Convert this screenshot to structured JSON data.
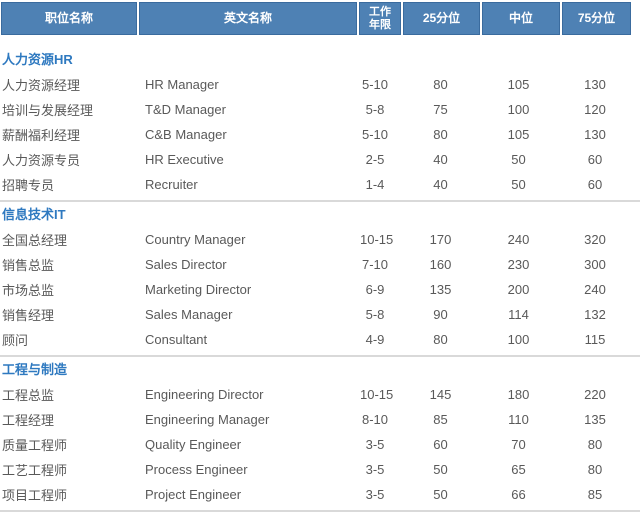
{
  "colors": {
    "header_bg": "#4E81B4",
    "header_border": "#3A6B9E",
    "header_text": "#FFFFFF",
    "section_title": "#2E79C0",
    "body_text": "#595959",
    "divider": "#D9D9D9"
  },
  "table": {
    "columns": [
      {
        "label": "职位名称"
      },
      {
        "label": "英文名称"
      },
      {
        "label": "工作年限"
      },
      {
        "label": "25分位"
      },
      {
        "label": "中位"
      },
      {
        "label": "75分位"
      }
    ],
    "sections": [
      {
        "title": "人力资源HR",
        "rows": [
          [
            "人力资源经理",
            "HR Manager",
            "5-10",
            "80",
            "105",
            "130"
          ],
          [
            "培训与发展经理",
            "T&D Manager",
            "5-8",
            "75",
            "100",
            "120"
          ],
          [
            "薪酬福利经理",
            "C&B Manager",
            "5-10",
            "80",
            "105",
            "130"
          ],
          [
            "人力资源专员",
            "HR Executive",
            "2-5",
            "40",
            "50",
            "60"
          ],
          [
            "招聘专员",
            "Recruiter",
            "1-4",
            "40",
            "50",
            "60"
          ]
        ]
      },
      {
        "title": "信息技术IT",
        "rows": [
          [
            "全国总经理",
            "Country Manager",
            "10-15",
            "170",
            "240",
            "320"
          ],
          [
            "销售总监",
            "Sales Director",
            "7-10",
            "160",
            "230",
            "300"
          ],
          [
            "市场总监",
            "Marketing Director",
            "6-9",
            "135",
            "200",
            "240"
          ],
          [
            "销售经理",
            "Sales Manager",
            "5-8",
            "90",
            "114",
            "132"
          ],
          [
            "顾问",
            "Consultant",
            "4-9",
            "80",
            "100",
            "115"
          ]
        ]
      },
      {
        "title": "工程与制造",
        "rows": [
          [
            "工程总监",
            "Engineering Director",
            "10-15",
            "145",
            "180",
            "220"
          ],
          [
            "工程经理",
            "Engineering Manager",
            "8-10",
            "85",
            "110",
            "135"
          ],
          [
            "质量工程师",
            "Quality Engineer",
            "3-5",
            "60",
            "70",
            "80"
          ],
          [
            "工艺工程师",
            "Process Engineer",
            "3-5",
            "50",
            "65",
            "80"
          ],
          [
            "项目工程师",
            "Project Engineer",
            "3-5",
            "50",
            "66",
            "85"
          ]
        ]
      }
    ]
  }
}
